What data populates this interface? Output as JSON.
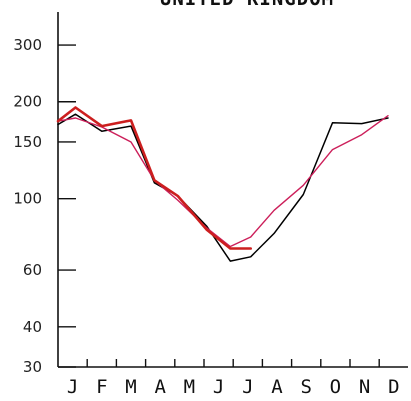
{
  "chart_data": {
    "type": "line",
    "title": "UNITED KINGDOM",
    "xlabel": "",
    "ylabel": "",
    "yscale": "log",
    "ylim": [
      30,
      380
    ],
    "y_ticks": [
      "300",
      "200",
      "150",
      "100",
      "60",
      "40",
      "30"
    ],
    "categories": [
      "J",
      "F",
      "M",
      "A",
      "M",
      "J",
      "J",
      "A",
      "S",
      "O",
      "N",
      "D"
    ],
    "grid": false,
    "legend": "none",
    "series": [
      {
        "color": "#000000",
        "x": [
          1,
          1.6,
          2.5,
          3.5,
          4.3,
          5.1,
          6.1,
          6.9,
          7.6,
          8.4,
          9.4,
          10.4,
          11.4,
          12.3
        ],
        "values": [
          170,
          183,
          162,
          168,
          112,
          102,
          82,
          64,
          66,
          78,
          103,
          172,
          171,
          178
        ]
      },
      {
        "color": "#cc1f5a",
        "x": [
          1,
          1.6,
          2.5,
          3.5,
          4.3,
          5.1,
          6.1,
          6.9,
          7.6,
          8.4,
          9.4,
          10.4,
          11.4,
          12.3
        ],
        "values": [
          174,
          178,
          167,
          150,
          114,
          99,
          81,
          71,
          76,
          92,
          110,
          142,
          158,
          181
        ]
      },
      {
        "color": "#cc1f1f",
        "x": [
          1,
          1.6,
          2.5,
          3.5,
          4.3,
          5.1,
          6.1,
          6.9,
          7.6
        ],
        "values": [
          174,
          192,
          168,
          175,
          114,
          102,
          80,
          70,
          70
        ]
      }
    ]
  }
}
